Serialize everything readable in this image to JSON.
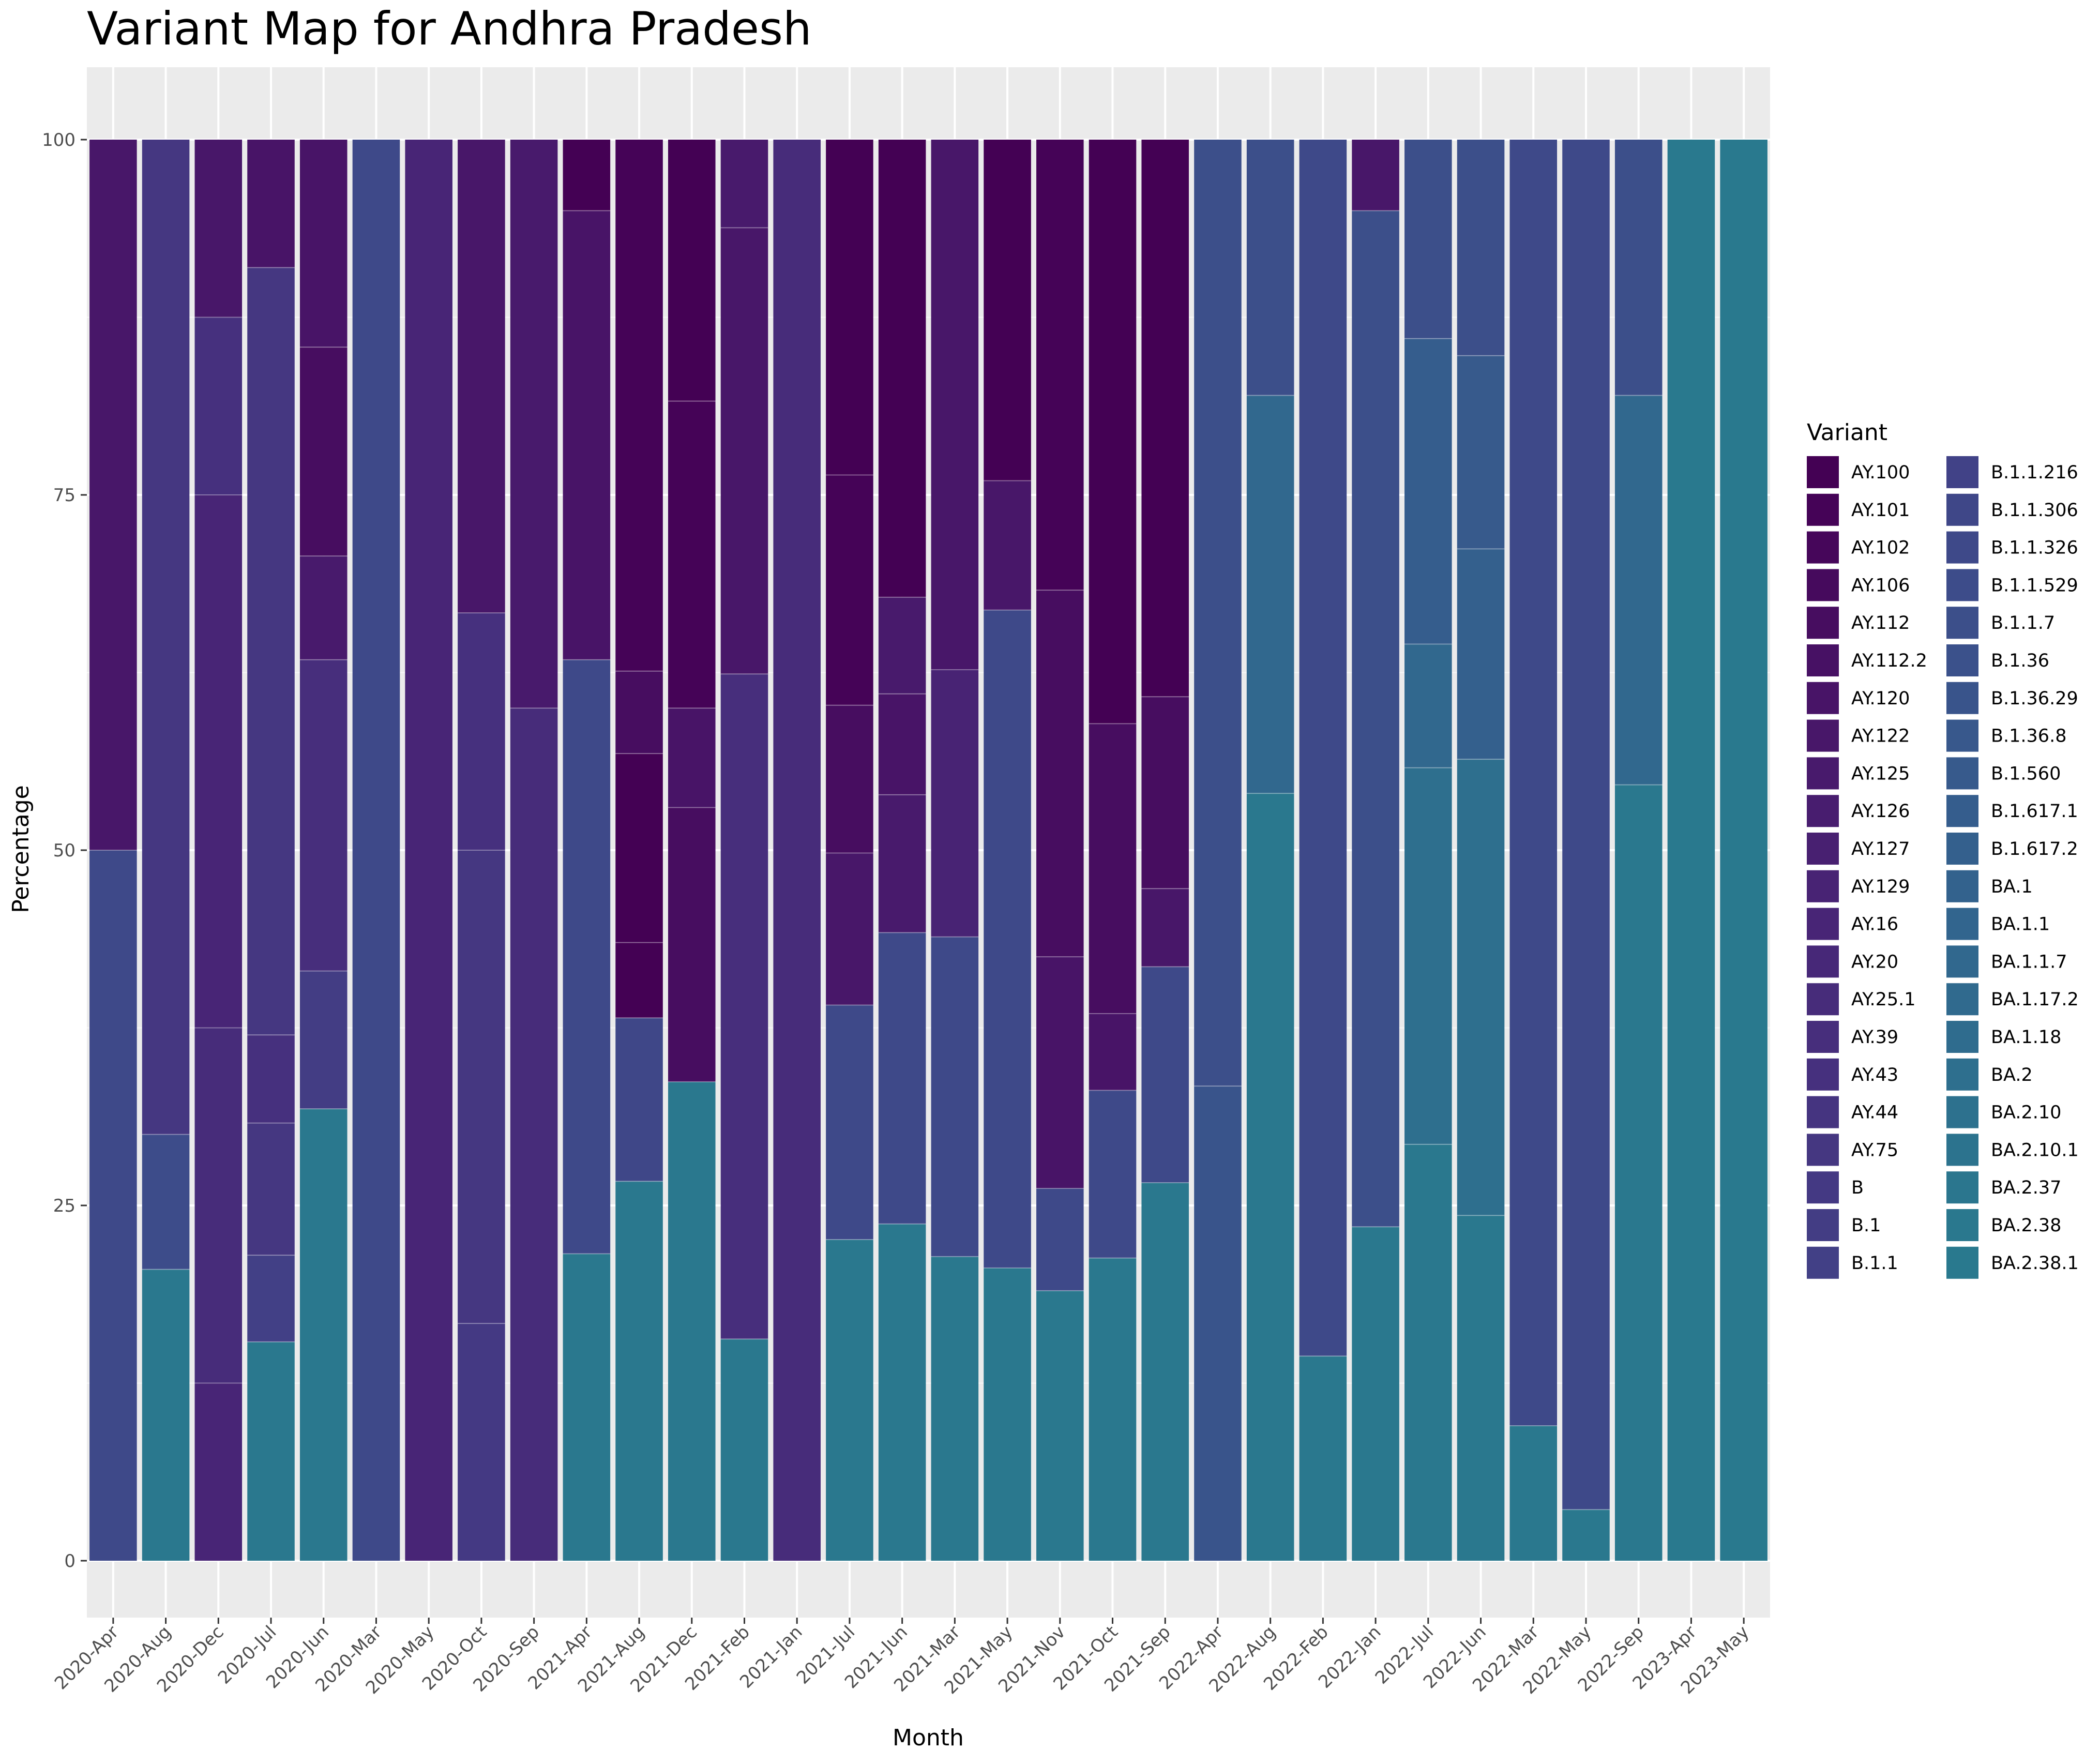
{
  "chart_data": {
    "type": "bar",
    "stacked": true,
    "title": "Variant Map for Andhra Pradesh",
    "xlabel": "Month",
    "ylabel": "Percentage",
    "ylim": [
      0,
      100
    ],
    "yticks": [
      0,
      25,
      50,
      75,
      100
    ],
    "legend_title": "Variant",
    "legend_position": "right",
    "panel_background": "#ebebeb",
    "grid_color": "#ffffff",
    "categories": [
      "2020-Apr",
      "2020-Aug",
      "2020-Dec",
      "2020-Jul",
      "2020-Jun",
      "2020-Mar",
      "2020-May",
      "2020-Oct",
      "2020-Sep",
      "2021-Apr",
      "2021-Aug",
      "2021-Dec",
      "2021-Feb",
      "2021-Jan",
      "2021-Jul",
      "2021-Jun",
      "2021-Mar",
      "2021-May",
      "2021-Nov",
      "2021-Oct",
      "2021-Sep",
      "2022-Apr",
      "2022-Aug",
      "2022-Feb",
      "2022-Jan",
      "2022-Jul",
      "2022-Jun",
      "2022-Mar",
      "2022-May",
      "2022-Sep",
      "2023-Apr",
      "2023-May"
    ],
    "variants": [
      {
        "name": "AY.100",
        "color": "#440154"
      },
      {
        "name": "AY.101",
        "color": "#450357"
      },
      {
        "name": "AY.102",
        "color": "#46065a"
      },
      {
        "name": "AY.106",
        "color": "#460a5d"
      },
      {
        "name": "AY.112",
        "color": "#470d60"
      },
      {
        "name": "AY.112.2",
        "color": "#471164"
      },
      {
        "name": "AY.120",
        "color": "#481467"
      },
      {
        "name": "AY.122",
        "color": "#481769"
      },
      {
        "name": "AY.125",
        "color": "#481a6c"
      },
      {
        "name": "AY.126",
        "color": "#481d6f"
      },
      {
        "name": "AY.127",
        "color": "#482071"
      },
      {
        "name": "AY.129",
        "color": "#482374"
      },
      {
        "name": "AY.16",
        "color": "#482576"
      },
      {
        "name": "AY.20",
        "color": "#472878"
      },
      {
        "name": "AY.25.1",
        "color": "#472c7a"
      },
      {
        "name": "AY.39",
        "color": "#472e7c"
      },
      {
        "name": "AY.43",
        "color": "#46307e"
      },
      {
        "name": "AY.44",
        "color": "#453480"
      },
      {
        "name": "AY.75",
        "color": "#453781"
      },
      {
        "name": "B",
        "color": "#443983"
      },
      {
        "name": "B.1",
        "color": "#433d84"
      },
      {
        "name": "B.1.1",
        "color": "#424086"
      },
      {
        "name": "B.1.1.216",
        "color": "#414287"
      },
      {
        "name": "B.1.1.306",
        "color": "#3f4788"
      },
      {
        "name": "B.1.1.326",
        "color": "#3e4989"
      },
      {
        "name": "B.1.1.529",
        "color": "#3d4c8a"
      },
      {
        "name": "B.1.1.7",
        "color": "#3c4f8a"
      },
      {
        "name": "B.1.36",
        "color": "#3b518b"
      },
      {
        "name": "B.1.36.29",
        "color": "#39548b"
      },
      {
        "name": "B.1.36.8",
        "color": "#38588c"
      },
      {
        "name": "B.1.560",
        "color": "#375a8c"
      },
      {
        "name": "B.1.617.1",
        "color": "#355d8d"
      },
      {
        "name": "B.1.617.2",
        "color": "#34608d"
      },
      {
        "name": "BA.1",
        "color": "#33628d"
      },
      {
        "name": "BA.1.1",
        "color": "#32658e"
      },
      {
        "name": "BA.1.1.7",
        "color": "#31688e"
      },
      {
        "name": "BA.1.17.2",
        "color": "#306a8e"
      },
      {
        "name": "BA.1.18",
        "color": "#2f6c8e"
      },
      {
        "name": "BA.2",
        "color": "#2e6f8e"
      },
      {
        "name": "BA.2.10",
        "color": "#2d718e"
      },
      {
        "name": "BA.2.10.1",
        "color": "#2c738e"
      },
      {
        "name": "BA.2.37",
        "color": "#2b768e"
      },
      {
        "name": "BA.2.38",
        "color": "#2a788e"
      },
      {
        "name": "BA.2.38.1",
        "color": "#29798e"
      }
    ],
    "stacks": [
      [
        {
          "color": "#3e4989",
          "top": 50
        },
        {
          "color": "#481769",
          "top": 100
        }
      ],
      [
        {
          "color": "#2a788e",
          "top": 20.5
        },
        {
          "color": "#3d4c8a",
          "top": 30
        },
        {
          "color": "#453781",
          "top": 100
        }
      ],
      [
        {
          "color": "#482576",
          "top": 12.5
        },
        {
          "color": "#472c7a",
          "top": 37.5
        },
        {
          "color": "#482576",
          "top": 75
        },
        {
          "color": "#46307e",
          "top": 87.5
        },
        {
          "color": "#481769",
          "top": 100
        }
      ],
      [
        {
          "color": "#2a788e",
          "top": 15.4
        },
        {
          "color": "#424086",
          "top": 21.5
        },
        {
          "color": "#453781",
          "top": 30.8
        },
        {
          "color": "#46307e",
          "top": 37
        },
        {
          "color": "#453781",
          "top": 91
        },
        {
          "color": "#481467",
          "top": 100
        }
      ],
      [
        {
          "color": "#2a788e",
          "top": 31.8
        },
        {
          "color": "#433d84",
          "top": 41.5
        },
        {
          "color": "#472e7c",
          "top": 63.4
        },
        {
          "color": "#481a6c",
          "top": 70.7
        },
        {
          "color": "#470d60",
          "top": 85.4
        },
        {
          "color": "#481467",
          "top": 100
        }
      ],
      [
        {
          "color": "#3e4989",
          "top": 100
        }
      ],
      [
        {
          "color": "#482576",
          "top": 100
        }
      ],
      [
        {
          "color": "#443983",
          "top": 16.7
        },
        {
          "color": "#453781",
          "top": 50
        },
        {
          "color": "#46307e",
          "top": 66.7
        },
        {
          "color": "#481769",
          "top": 100
        }
      ],
      [
        {
          "color": "#472c7a",
          "top": 60
        },
        {
          "color": "#481a6c",
          "top": 100
        }
      ],
      [
        {
          "color": "#2a788e",
          "top": 21.6
        },
        {
          "color": "#3e4989",
          "top": 63.4
        },
        {
          "color": "#481467",
          "top": 95
        },
        {
          "color": "#440154",
          "top": 100
        }
      ],
      [
        {
          "color": "#2a788e",
          "top": 26.7
        },
        {
          "color": "#3f4788",
          "top": 38.2
        },
        {
          "color": "#440154",
          "top": 43.5
        },
        {
          "color": "#440154",
          "top": 56.8
        },
        {
          "color": "#470d60",
          "top": 62.6
        },
        {
          "color": "#450357",
          "top": 100
        }
      ],
      [
        {
          "color": "#2a788e",
          "top": 33.7
        },
        {
          "color": "#470d60",
          "top": 53
        },
        {
          "color": "#481467",
          "top": 60
        },
        {
          "color": "#450357",
          "top": 81.6
        },
        {
          "color": "#440154",
          "top": 100
        }
      ],
      [
        {
          "color": "#2a788e",
          "top": 15.6
        },
        {
          "color": "#472e7c",
          "top": 62.4
        },
        {
          "color": "#481769",
          "top": 93.8
        },
        {
          "color": "#481a6c",
          "top": 100
        }
      ],
      [
        {
          "color": "#472c7a",
          "top": 100
        }
      ],
      [
        {
          "color": "#2a788e",
          "top": 22.6
        },
        {
          "color": "#3e4989",
          "top": 39.1
        },
        {
          "color": "#481769",
          "top": 49.8
        },
        {
          "color": "#470d60",
          "top": 60.2
        },
        {
          "color": "#450357",
          "top": 76.4
        },
        {
          "color": "#440154",
          "top": 100
        }
      ],
      [
        {
          "color": "#2a788e",
          "top": 23.7
        },
        {
          "color": "#3e4989",
          "top": 44.2
        },
        {
          "color": "#481a6c",
          "top": 53.9
        },
        {
          "color": "#481467",
          "top": 61
        },
        {
          "color": "#481a6c",
          "top": 67.8
        },
        {
          "color": "#440154",
          "top": 100
        }
      ],
      [
        {
          "color": "#2a788e",
          "top": 21.4
        },
        {
          "color": "#3e4989",
          "top": 43.9
        },
        {
          "color": "#482374",
          "top": 62.7
        },
        {
          "color": "#481769",
          "top": 100
        }
      ],
      [
        {
          "color": "#2a788e",
          "top": 20.6
        },
        {
          "color": "#3e4989",
          "top": 66.9
        },
        {
          "color": "#481769",
          "top": 76
        },
        {
          "color": "#440154",
          "top": 100
        }
      ],
      [
        {
          "color": "#2a788e",
          "top": 19
        },
        {
          "color": "#3e4989",
          "top": 26.2
        },
        {
          "color": "#481467",
          "top": 42.5
        },
        {
          "color": "#470d60",
          "top": 68.3
        },
        {
          "color": "#450357",
          "top": 100
        }
      ],
      [
        {
          "color": "#2a788e",
          "top": 21.3
        },
        {
          "color": "#3e4989",
          "top": 33.1
        },
        {
          "color": "#481467",
          "top": 38.5
        },
        {
          "color": "#470d60",
          "top": 58.9
        },
        {
          "color": "#440154",
          "top": 100
        }
      ],
      [
        {
          "color": "#2a788e",
          "top": 26.6
        },
        {
          "color": "#3e4989",
          "top": 41.8
        },
        {
          "color": "#481769",
          "top": 47.3
        },
        {
          "color": "#470d60",
          "top": 60.8
        },
        {
          "color": "#440154",
          "top": 100
        }
      ],
      [
        {
          "color": "#39548b",
          "top": 33.4
        },
        {
          "color": "#3c4f8a",
          "top": 100
        }
      ],
      [
        {
          "color": "#2a788e",
          "top": 54
        },
        {
          "color": "#31688e",
          "top": 82
        },
        {
          "color": "#3c4f8a",
          "top": 100
        }
      ],
      [
        {
          "color": "#2a788e",
          "top": 14.4
        },
        {
          "color": "#3e4989",
          "top": 100
        }
      ],
      [
        {
          "color": "#2a788e",
          "top": 23.5
        },
        {
          "color": "#3c4f8a",
          "top": 95
        },
        {
          "color": "#481769",
          "top": 100
        }
      ],
      [
        {
          "color": "#2a788e",
          "top": 29.3
        },
        {
          "color": "#2e6f8e",
          "top": 55.8
        },
        {
          "color": "#31688e",
          "top": 64.5
        },
        {
          "color": "#355d8d",
          "top": 86
        },
        {
          "color": "#3c4f8a",
          "top": 100
        }
      ],
      [
        {
          "color": "#2a788e",
          "top": 24.3
        },
        {
          "color": "#2e6f8e",
          "top": 56.4
        },
        {
          "color": "#34608d",
          "top": 71.2
        },
        {
          "color": "#375a8c",
          "top": 84.8
        },
        {
          "color": "#3c4f8a",
          "top": 100
        }
      ],
      [
        {
          "color": "#2a788e",
          "top": 9.5
        },
        {
          "color": "#3e4989",
          "top": 100
        }
      ],
      [
        {
          "color": "#2a788e",
          "top": 3.6
        },
        {
          "color": "#3e4989",
          "top": 100
        }
      ],
      [
        {
          "color": "#2a788e",
          "top": 54.6
        },
        {
          "color": "#31688e",
          "top": 82
        },
        {
          "color": "#3c4f8a",
          "top": 100
        }
      ],
      [
        {
          "color": "#29798e",
          "top": 100
        }
      ],
      [
        {
          "color": "#29798e",
          "top": 100
        }
      ]
    ]
  }
}
